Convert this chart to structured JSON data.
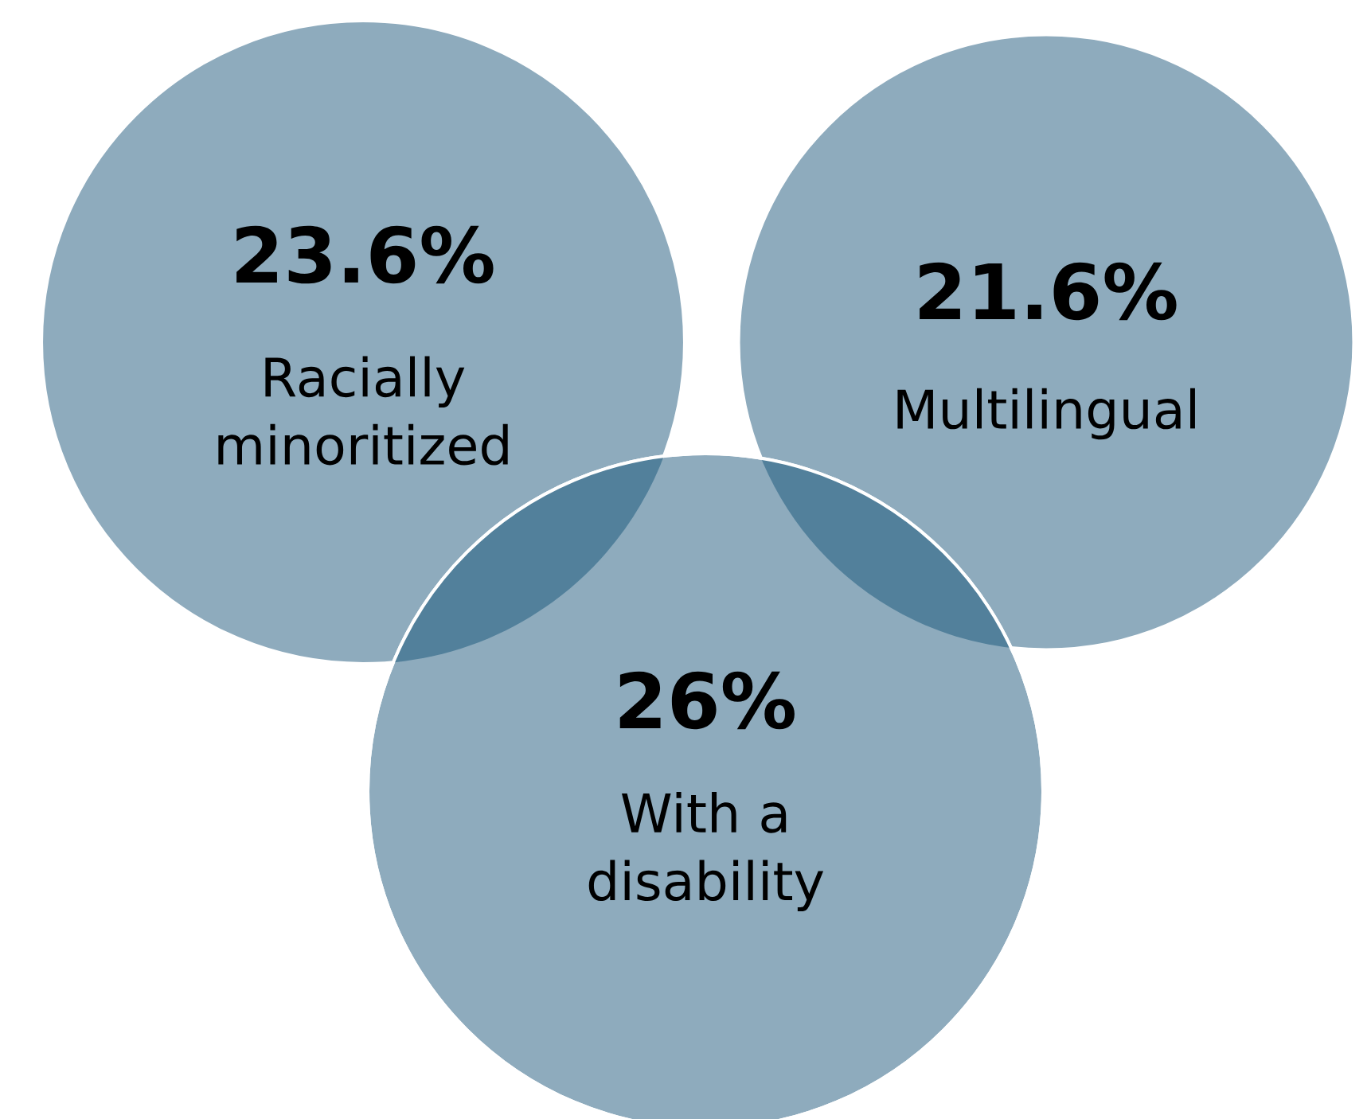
{
  "chart_data": {
    "type": "other",
    "categories": [
      "Racially minoritized",
      "Multilingual",
      "With a disability"
    ],
    "values": [
      23.6,
      21.6,
      26
    ],
    "value_labels": [
      "23.6%",
      "21.6%",
      "26%"
    ],
    "colors": [
      "#8eabbd",
      "#8eabbd",
      "#8eabbd"
    ]
  }
}
